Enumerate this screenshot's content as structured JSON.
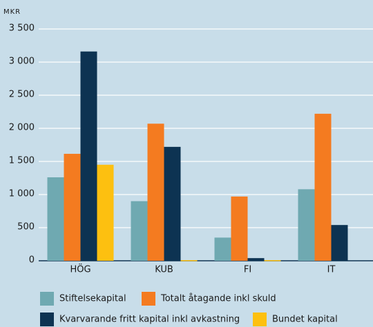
{
  "chart_data": {
    "type": "bar",
    "y_label": "MKR",
    "categories": [
      "HÖG",
      "KUB",
      "FI",
      "IT"
    ],
    "series": [
      {
        "name": "Stiftelsekapital",
        "color": "#6fa9b1",
        "values": [
          1260,
          900,
          350,
          1080
        ]
      },
      {
        "name": "Totalt åtagande inkl skuld",
        "color": "#f47b20",
        "values": [
          1615,
          2070,
          970,
          2220
        ]
      },
      {
        "name": "Kvarvarande fritt kapital inkl avkastning",
        "color": "#0d3352",
        "values": [
          3160,
          1720,
          40,
          540
        ]
      },
      {
        "name": "Bundet kapital",
        "color": "#fdc010",
        "values": [
          1450,
          10,
          10,
          0
        ]
      }
    ],
    "ylim": [
      0,
      3500
    ],
    "yticks": [
      0,
      500,
      {
        "value": 1000,
        "label": "1 000"
      },
      {
        "value": 1500,
        "label": "1 500"
      },
      {
        "value": 2000,
        "label": "2 000"
      },
      {
        "value": 2500,
        "label": "2 500"
      },
      {
        "value": 3000,
        "label": "3 000"
      },
      {
        "value": 3500,
        "label": "3 500"
      }
    ],
    "grid": true
  }
}
